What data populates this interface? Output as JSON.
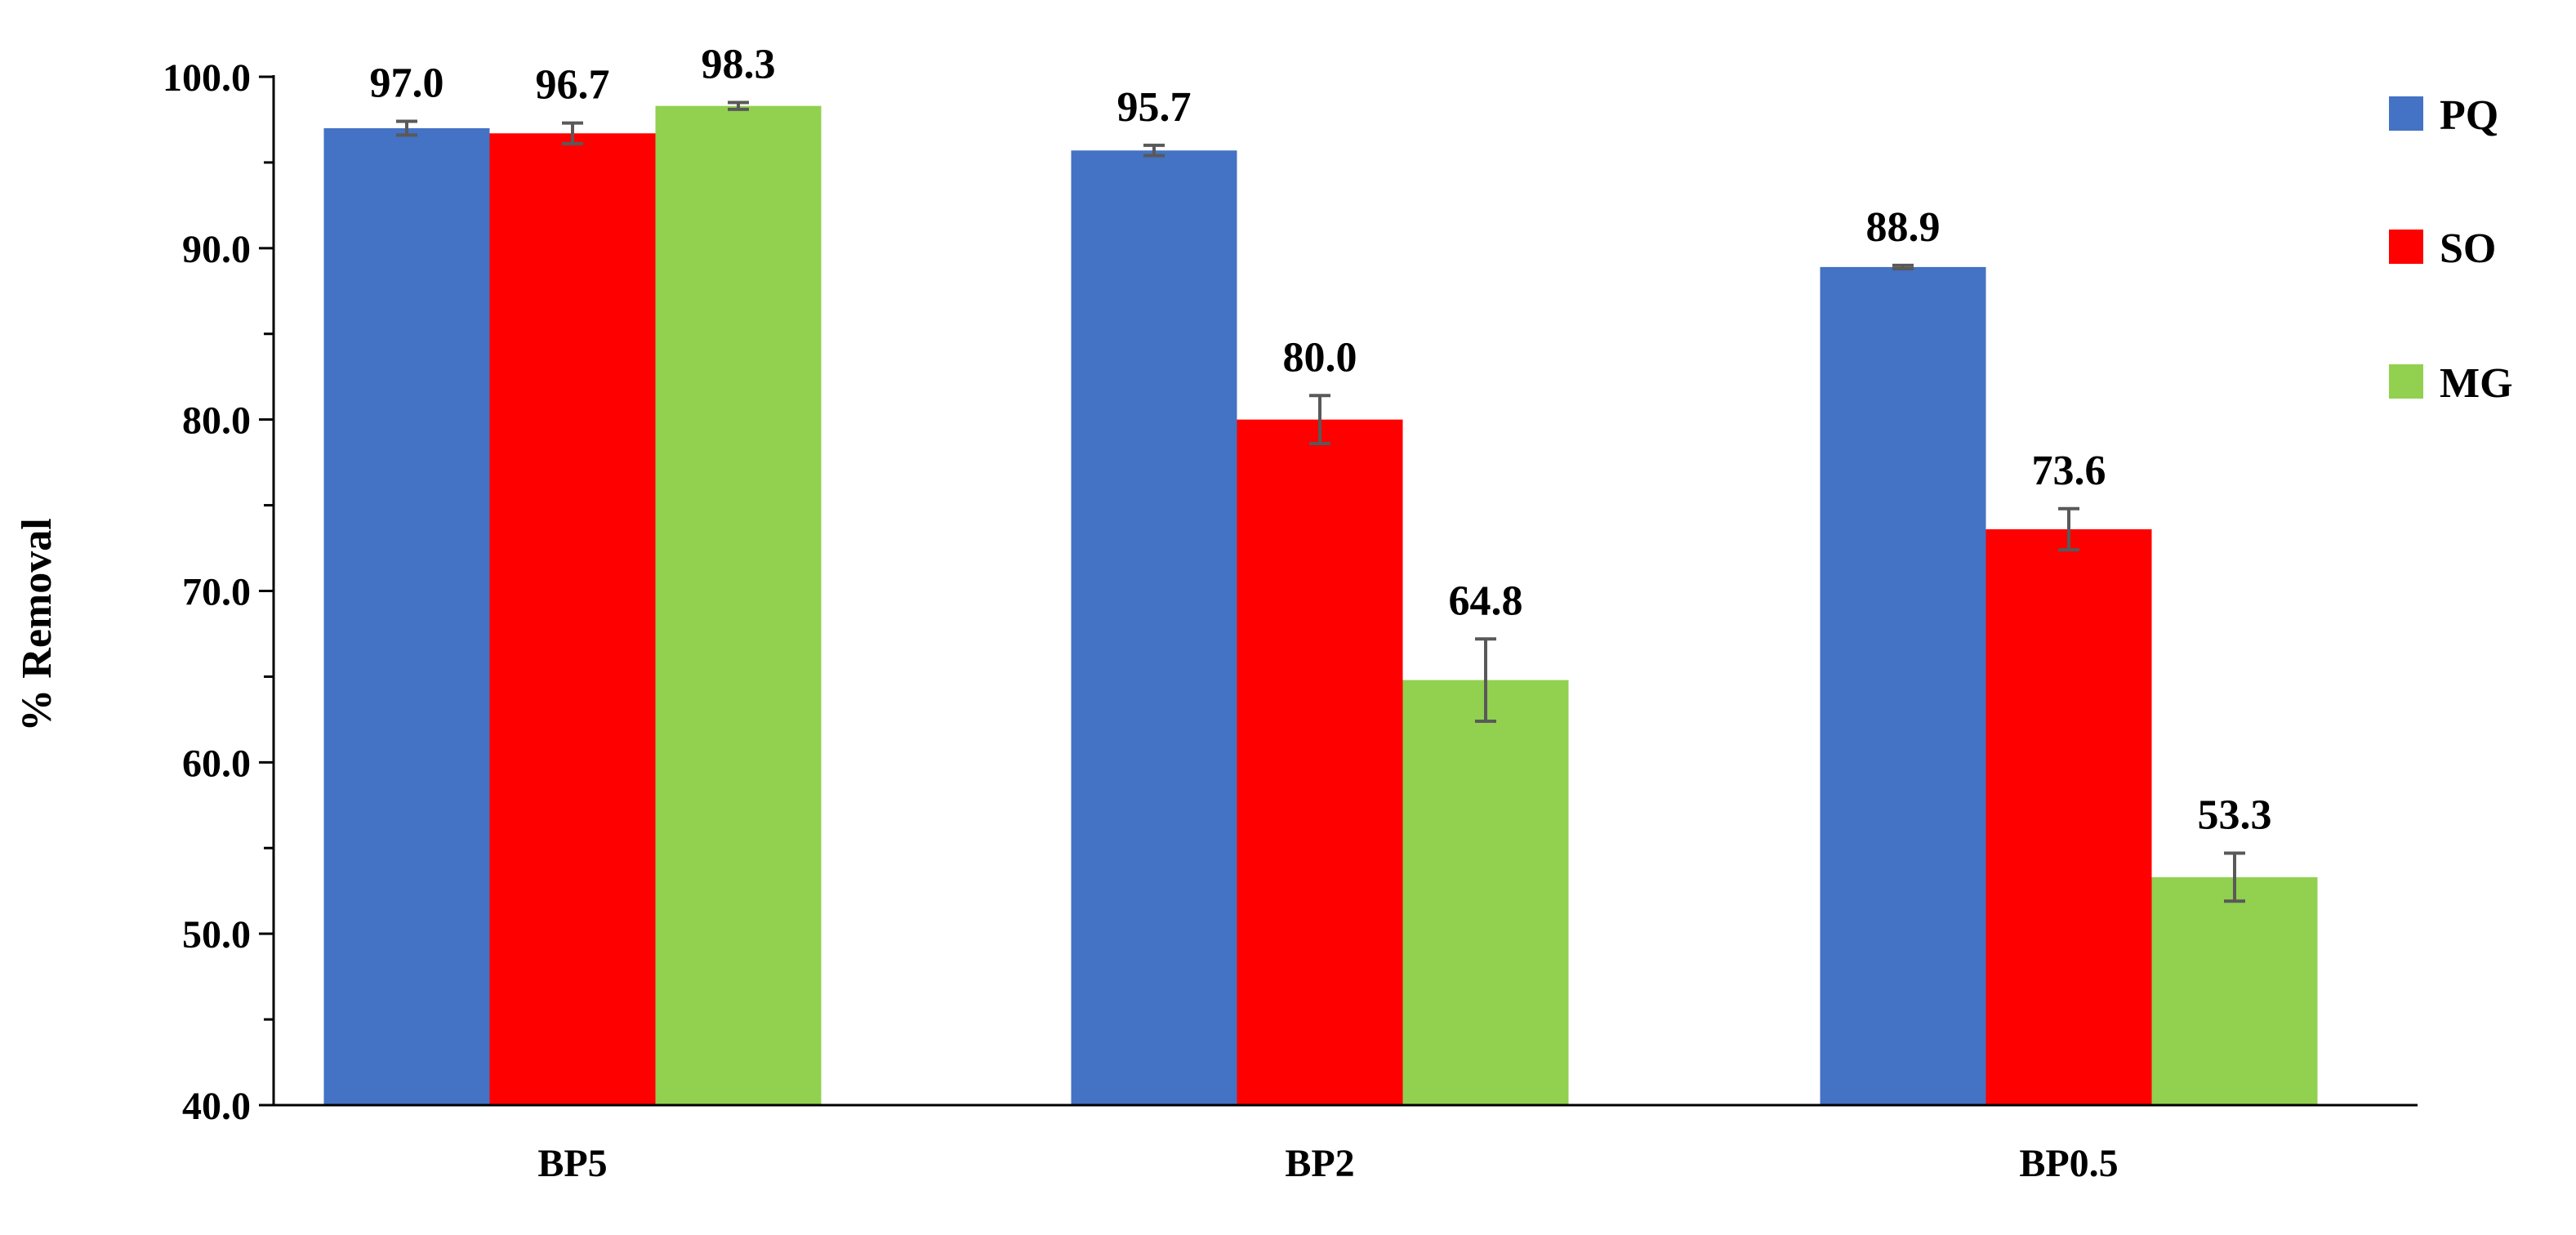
{
  "chart_data": {
    "type": "bar",
    "title": "",
    "xlabel": "",
    "ylabel": "% Removal",
    "ylim": [
      40,
      100
    ],
    "yticks": [
      "40.0",
      "50.0",
      "60.0",
      "70.0",
      "80.0",
      "90.0",
      "100.0"
    ],
    "categories": [
      "BP5",
      "BP2",
      "BP0.5"
    ],
    "series": [
      {
        "name": "PQ",
        "color": "#4472C4",
        "values": [
          97.0,
          95.7,
          88.9
        ],
        "labels": [
          "97.0",
          "95.7",
          "88.9"
        ],
        "errors": [
          0.4,
          0.3,
          0.1
        ]
      },
      {
        "name": "SO",
        "color": "#FF0000",
        "values": [
          96.7,
          80.0,
          73.6
        ],
        "labels": [
          "96.7",
          "80.0",
          "73.6"
        ],
        "errors": [
          0.6,
          1.4,
          1.2
        ]
      },
      {
        "name": "MG",
        "color": "#92D050",
        "values": [
          98.3,
          64.8,
          53.3
        ],
        "labels": [
          "98.3",
          "64.8",
          "53.3"
        ],
        "errors": [
          0.2,
          2.4,
          1.4
        ]
      }
    ],
    "grid": false,
    "legend_position": "top-right",
    "error_bar_color": "#595959"
  }
}
